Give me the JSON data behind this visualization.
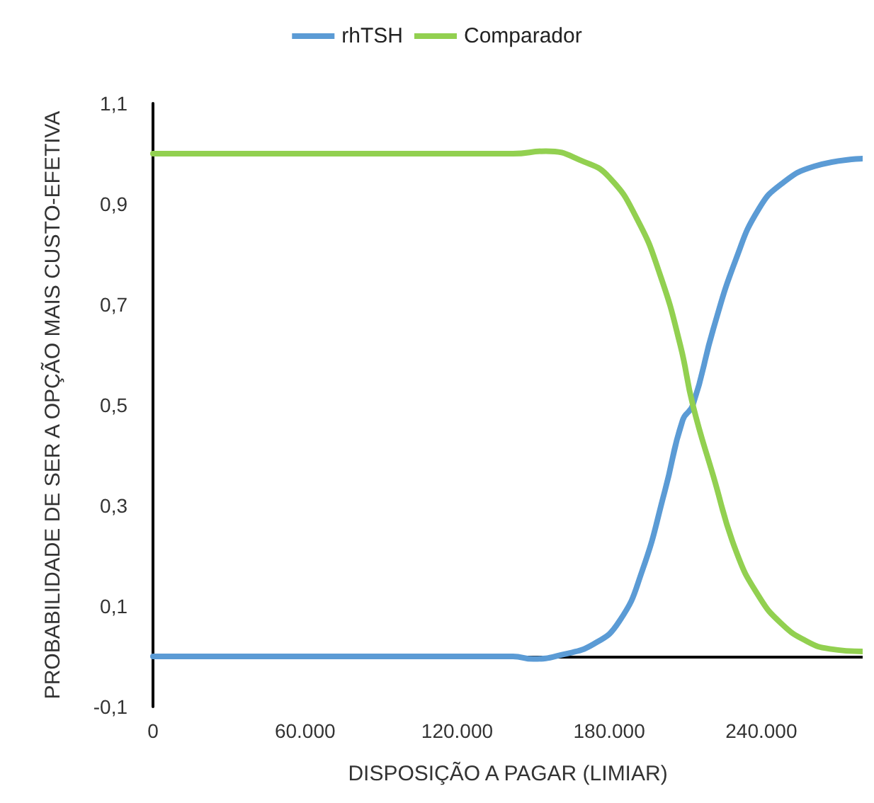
{
  "chart_data": {
    "type": "line",
    "xlabel": "DISPOSIÇÃO A PAGAR (LIMIAR)",
    "ylabel": "PROBABILIDADE DE SER A OPÇÃO MAIS CUSTO-EFETIVA",
    "legend": "top",
    "grid": false,
    "marker": "none",
    "line_style": "solid",
    "xlim": [
      0,
      280000
    ],
    "xticks": [
      0,
      {
        "value": 60000,
        "label": "60.000"
      },
      {
        "value": 120000,
        "label": "120.000"
      },
      {
        "value": 180000,
        "label": "180.000"
      },
      {
        "value": 240000,
        "label": "240.000"
      }
    ],
    "ylim": [
      -0.1,
      1.1
    ],
    "yticks": [
      {
        "value": -0.1,
        "label": "-0,1"
      },
      {
        "value": 0.1,
        "label": "0,1"
      },
      {
        "value": 0.3,
        "label": "0,3"
      },
      {
        "value": 0.5,
        "label": "0,5"
      },
      {
        "value": 0.7,
        "label": "0,7"
      },
      {
        "value": 0.9,
        "label": "0,9"
      },
      {
        "value": 1.1,
        "label": "1,1"
      }
    ],
    "series": [
      {
        "name": "rhTSH",
        "color": "#5b9bd5",
        "x": [
          0,
          142000,
          150000,
          161000,
          174000,
          184000,
          193000,
          202000,
          209000,
          213000,
          221000,
          230000,
          239000,
          248000,
          261000,
          280000
        ],
        "values": [
          0,
          0,
          -0.005,
          0.003,
          0.025,
          0.07,
          0.17,
          0.33,
          0.47,
          0.5,
          0.65,
          0.79,
          0.89,
          0.94,
          0.975,
          0.99
        ]
      },
      {
        "name": "Comparador",
        "color": "#92d050",
        "x": [
          0,
          142000,
          155000,
          170000,
          180000,
          191000,
          200000,
          208000,
          213000,
          221000,
          230000,
          239000,
          248000,
          258000,
          267000,
          280000
        ],
        "values": [
          1,
          1,
          1.005,
          0.984,
          0.953,
          0.87,
          0.76,
          0.62,
          0.5,
          0.36,
          0.21,
          0.12,
          0.065,
          0.03,
          0.015,
          0.01
        ]
      }
    ]
  }
}
